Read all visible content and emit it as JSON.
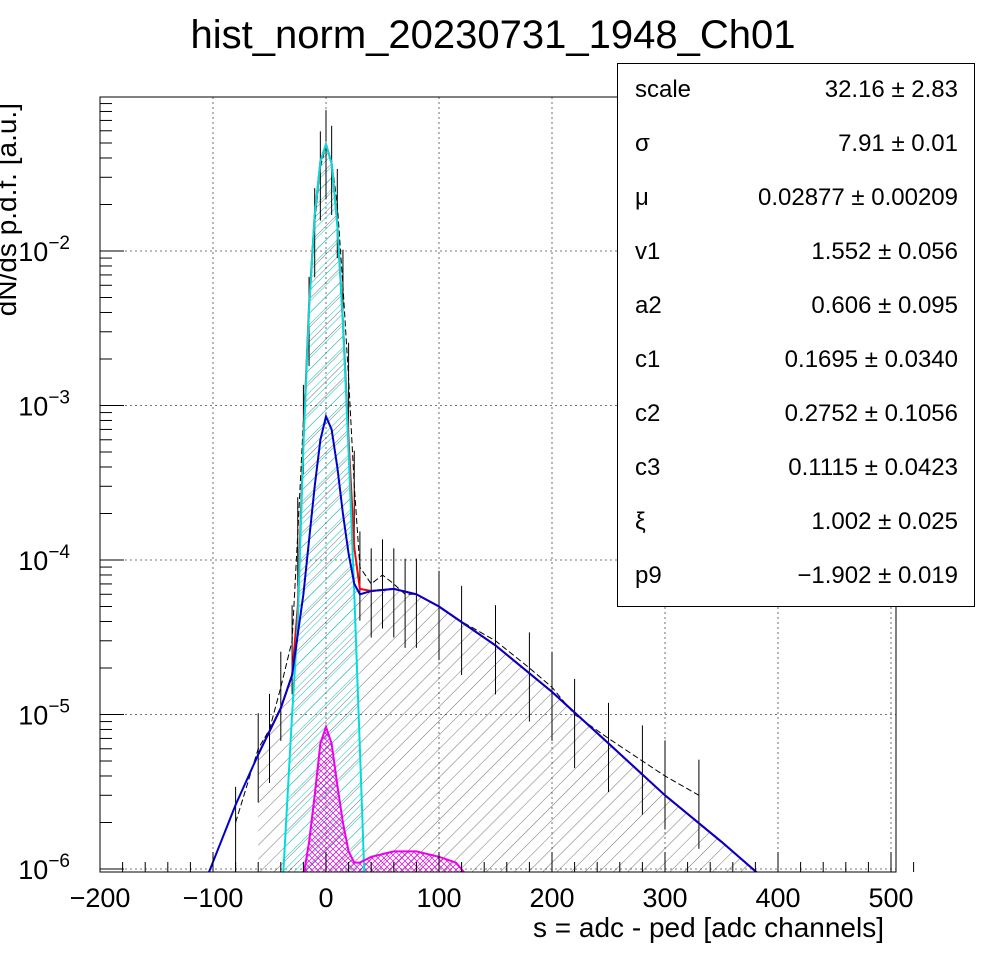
{
  "chart_data": {
    "type": "line",
    "title": "hist_norm_20230731_1948_Ch01",
    "xlabel": "s = adc - ped [adc channels]",
    "ylabel": "dN/ds p.d.f. [a.u.]",
    "xlim": [
      -215,
      530
    ],
    "ylim": [
      9e-07,
      0.1
    ],
    "yscale": "log",
    "grid": true,
    "x_ticks": [
      -200,
      -100,
      0,
      100,
      200,
      300,
      400,
      500
    ],
    "x_tick_labels": [
      "−200",
      "−100",
      "0",
      "100",
      "200",
      "300",
      "400",
      "500"
    ],
    "y_ticks": [
      1e-06,
      1e-05,
      0.0001,
      0.001,
      0.01
    ],
    "y_tick_labels": [
      {
        "base": "10",
        "exp": "−6"
      },
      {
        "base": "10",
        "exp": "−5"
      },
      {
        "base": "10",
        "exp": "−4"
      },
      {
        "base": "10",
        "exp": "−3"
      },
      {
        "base": "10",
        "exp": "−2"
      }
    ],
    "series": [
      {
        "role": "histogram (data)",
        "color": "#000000",
        "x": [
          -80,
          -60,
          -50,
          -40,
          -30,
          -25,
          -20,
          -15,
          -10,
          -5,
          0,
          5,
          10,
          15,
          20,
          25,
          30,
          40,
          50,
          60,
          70,
          80,
          100,
          120,
          150,
          180,
          200,
          220,
          250,
          280,
          300,
          330
        ],
        "y": [
          2e-06,
          6e-06,
          8e-06,
          1.5e-05,
          3e-05,
          0.00015,
          0.0008,
          0.004,
          0.015,
          0.035,
          0.048,
          0.038,
          0.02,
          0.006,
          0.0015,
          0.0003,
          9e-05,
          7e-05,
          8e-05,
          7e-05,
          6e-05,
          6e-05,
          5e-05,
          4e-05,
          3e-05,
          2e-05,
          1.5e-05,
          1e-05,
          7e-06,
          5e-06,
          4e-06,
          3e-06
        ]
      },
      {
        "role": "total fit",
        "color": "#ff0000",
        "x": [
          -60,
          -40,
          -30,
          -25,
          -20,
          -15,
          -10,
          -5,
          0,
          5,
          10,
          15,
          20,
          25,
          30,
          40,
          60,
          80,
          100,
          150,
          200,
          250,
          300,
          350,
          385
        ],
        "y": [
          5.5e-06,
          1.1e-05,
          1.8e-05,
          5e-05,
          0.0006,
          0.0045,
          0.017,
          0.038,
          0.049,
          0.037,
          0.015,
          0.0035,
          0.0006,
          0.00012,
          6.5e-05,
          6.3e-05,
          6.5e-05,
          6e-05,
          5e-05,
          2.8e-05,
          1.4e-05,
          6.5e-06,
          3e-06,
          1.5e-06,
          9e-07
        ]
      },
      {
        "role": "pedestal component",
        "color": "#00dddd",
        "x": [
          -38,
          -30,
          -25,
          -20,
          -15,
          -10,
          -5,
          0,
          5,
          10,
          15,
          20,
          25,
          30,
          34
        ],
        "y": [
          9e-07,
          1e-05,
          4e-05,
          0.00055,
          0.0042,
          0.017,
          0.038,
          0.049,
          0.037,
          0.015,
          0.0035,
          0.0005,
          6e-05,
          6e-06,
          9e-07
        ]
      },
      {
        "role": "signal component",
        "color": "#0000cc",
        "x": [
          -105,
          -80,
          -60,
          -40,
          -30,
          -20,
          -10,
          -5,
          0,
          5,
          10,
          15,
          20,
          25,
          30,
          40,
          60,
          80,
          100,
          150,
          200,
          250,
          300,
          350,
          385
        ],
        "y": [
          9e-07,
          2.6e-06,
          5.5e-06,
          1.1e-05,
          1.8e-05,
          6e-05,
          0.0003,
          0.0006,
          0.00085,
          0.0007,
          0.0004,
          0.0002,
          0.00011,
          7e-05,
          6e-05,
          6.3e-05,
          6.5e-05,
          6e-05,
          5e-05,
          2.8e-05,
          1.4e-05,
          6.5e-06,
          3e-06,
          1.5e-06,
          9e-07
        ]
      },
      {
        "role": "secondary component",
        "color": "#ee00ee",
        "x": [
          -20,
          -15,
          -10,
          -5,
          0,
          5,
          10,
          15,
          20,
          25,
          30,
          40,
          60,
          80,
          100,
          115,
          125
        ],
        "y": [
          9e-07,
          1.5e-06,
          3e-06,
          6.5e-06,
          8.3e-06,
          6.5e-06,
          3.5e-06,
          2e-06,
          1.3e-06,
          1.1e-06,
          1.1e-06,
          1.2e-06,
          1.3e-06,
          1.3e-06,
          1.2e-06,
          1.1e-06,
          9e-07
        ]
      }
    ]
  },
  "stats": [
    {
      "name": "scale",
      "value": "32.16 ± 2.83"
    },
    {
      "name": "σ",
      "value": "7.91 ± 0.01"
    },
    {
      "name": "μ",
      "value": "0.02877 ± 0.00209"
    },
    {
      "name": "v1",
      "value": "1.552 ± 0.056"
    },
    {
      "name": "a2",
      "value": "0.606 ± 0.095"
    },
    {
      "name": "c1",
      "value": "0.1695 ± 0.0340"
    },
    {
      "name": "c2",
      "value": "0.2752 ± 0.1056"
    },
    {
      "name": "c3",
      "value": "0.1115 ± 0.0423"
    },
    {
      "name": "ξ",
      "value": "1.002 ± 0.025"
    },
    {
      "name": "p9",
      "value": "−1.902 ± 0.019"
    }
  ]
}
